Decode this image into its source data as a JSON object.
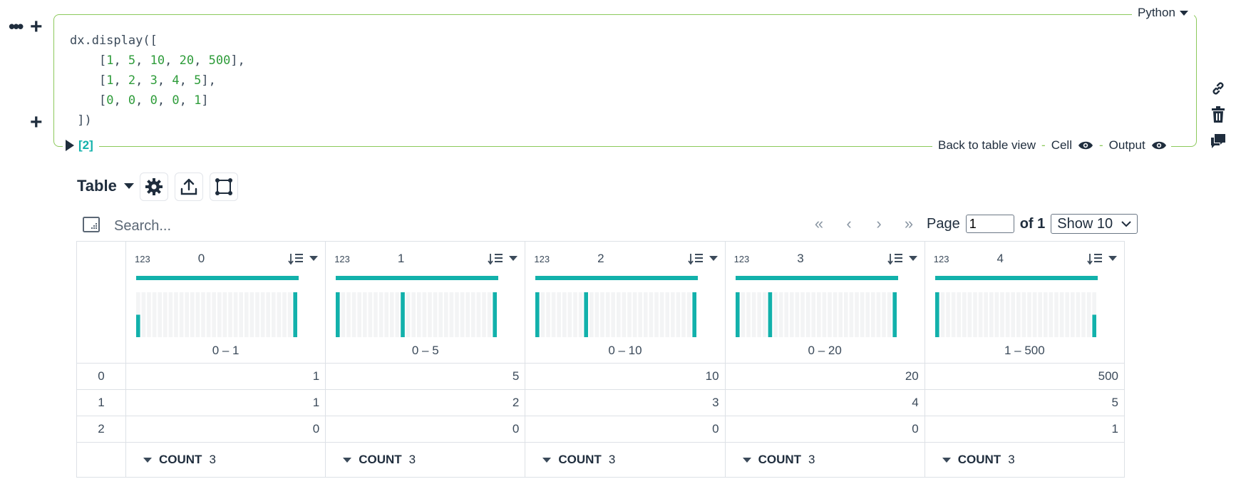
{
  "cell": {
    "language": "Python",
    "code_lines": [
      [
        {
          "t": "dx.display([",
          "c": ""
        }
      ],
      [
        {
          "t": "    [",
          "c": ""
        },
        {
          "t": "1",
          "c": "n"
        },
        {
          "t": ", ",
          "c": ""
        },
        {
          "t": "5",
          "c": "n"
        },
        {
          "t": ", ",
          "c": ""
        },
        {
          "t": "10",
          "c": "n"
        },
        {
          "t": ", ",
          "c": ""
        },
        {
          "t": "20",
          "c": "n"
        },
        {
          "t": ", ",
          "c": ""
        },
        {
          "t": "500",
          "c": "n"
        },
        {
          "t": "],",
          "c": ""
        }
      ],
      [
        {
          "t": "    [",
          "c": ""
        },
        {
          "t": "1",
          "c": "n"
        },
        {
          "t": ", ",
          "c": ""
        },
        {
          "t": "2",
          "c": "n"
        },
        {
          "t": ", ",
          "c": ""
        },
        {
          "t": "3",
          "c": "n"
        },
        {
          "t": ", ",
          "c": ""
        },
        {
          "t": "4",
          "c": "n"
        },
        {
          "t": ", ",
          "c": ""
        },
        {
          "t": "5",
          "c": "n"
        },
        {
          "t": "],",
          "c": ""
        }
      ],
      [
        {
          "t": "    [",
          "c": ""
        },
        {
          "t": "0",
          "c": "n"
        },
        {
          "t": ", ",
          "c": ""
        },
        {
          "t": "0",
          "c": "n"
        },
        {
          "t": ", ",
          "c": ""
        },
        {
          "t": "0",
          "c": "n"
        },
        {
          "t": ", ",
          "c": ""
        },
        {
          "t": "0",
          "c": "n"
        },
        {
          "t": ", ",
          "c": ""
        },
        {
          "t": "1",
          "c": "n"
        },
        {
          "t": "]",
          "c": ""
        }
      ],
      [
        {
          "t": " ])",
          "c": ""
        }
      ]
    ],
    "execution_count": "[2]",
    "back_to_table": "Back to table view",
    "cell_label": "Cell",
    "output_label": "Output",
    "separator": "-"
  },
  "toolbar": {
    "view_label": "Table",
    "buttons": [
      "gear-icon",
      "export-icon",
      "select-region-icon"
    ]
  },
  "search": {
    "placeholder": "Search..."
  },
  "pagination": {
    "page_label": "Page",
    "current_page": "1",
    "of_label": "of 1",
    "show_label": "Show 10"
  },
  "table": {
    "dtype_label": "123",
    "columns": [
      {
        "name": "0",
        "range": "0 – 1",
        "hist": [
          1,
          0,
          0,
          0,
          0,
          0,
          0,
          0,
          0,
          0,
          0,
          0,
          0,
          0,
          0,
          0,
          0,
          0,
          0,
          0,
          0,
          0,
          0,
          0,
          0,
          0,
          0,
          0,
          0,
          2
        ],
        "count": "3"
      },
      {
        "name": "1",
        "range": "0 – 5",
        "hist": [
          1,
          0,
          0,
          0,
          0,
          0,
          0,
          0,
          0,
          0,
          0,
          0,
          1,
          0,
          0,
          0,
          0,
          0,
          0,
          0,
          0,
          0,
          0,
          0,
          0,
          0,
          0,
          0,
          0,
          1
        ],
        "count": "3"
      },
      {
        "name": "2",
        "range": "0 – 10",
        "hist": [
          1,
          0,
          0,
          0,
          0,
          0,
          0,
          0,
          0,
          1,
          0,
          0,
          0,
          0,
          0,
          0,
          0,
          0,
          0,
          0,
          0,
          0,
          0,
          0,
          0,
          0,
          0,
          0,
          0,
          1
        ],
        "count": "3"
      },
      {
        "name": "3",
        "range": "0 – 20",
        "hist": [
          1,
          0,
          0,
          0,
          0,
          0,
          1,
          0,
          0,
          0,
          0,
          0,
          0,
          0,
          0,
          0,
          0,
          0,
          0,
          0,
          0,
          0,
          0,
          0,
          0,
          0,
          0,
          0,
          0,
          1
        ],
        "count": "3"
      },
      {
        "name": "4",
        "range": "1 – 500",
        "hist": [
          2,
          0,
          0,
          0,
          0,
          0,
          0,
          0,
          0,
          0,
          0,
          0,
          0,
          0,
          0,
          0,
          0,
          0,
          0,
          0,
          0,
          0,
          0,
          0,
          0,
          0,
          0,
          0,
          0,
          1
        ],
        "count": "3"
      }
    ],
    "rows": [
      {
        "index": "0",
        "values": [
          "1",
          "5",
          "10",
          "20",
          "500"
        ]
      },
      {
        "index": "1",
        "values": [
          "1",
          "2",
          "3",
          "4",
          "5"
        ]
      },
      {
        "index": "2",
        "values": [
          "0",
          "0",
          "0",
          "0",
          "1"
        ]
      }
    ],
    "footer_label": "COUNT"
  },
  "colors": {
    "accent": "#12b1ab",
    "cell_border": "#8cc95b",
    "number": "#2e9c3a",
    "hist_bg": "#f3f4f5"
  }
}
